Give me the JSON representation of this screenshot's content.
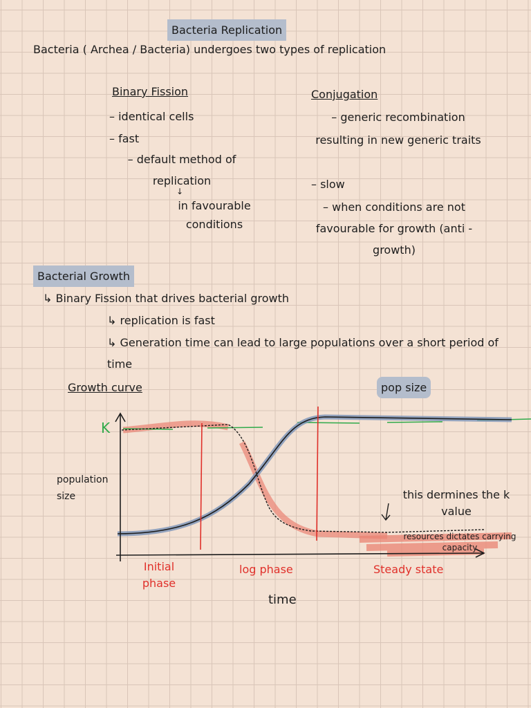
{
  "title": "Bacteria Replication",
  "intro": "Bacteria ( Archea / Bacteria) undergoes two types of replication",
  "columns": [
    {
      "heading": "Binary Fission",
      "items": [
        "identical cells",
        "fast",
        "default method of replication"
      ],
      "note": "in favourable conditions"
    },
    {
      "heading": "Conjugation",
      "items": [
        "generic recombination resulting in new generic traits",
        "slow",
        "when conditions are not favourable for growth (anti - growth)"
      ]
    }
  ],
  "growth": {
    "heading": "Bacterial Growth",
    "lines": [
      "Binary Fission that drives bacterial growth",
      "replication is fast",
      "Generation time can lead to large populations over a short period of time"
    ]
  },
  "graph": {
    "heading": "Growth curve",
    "highlight": "pop size",
    "k_label": "K",
    "y_label": "population size",
    "x_label": "time",
    "phases": [
      "Initial phase",
      "log phase",
      "Steady state"
    ],
    "annotations": [
      "this dermines the k value",
      "resources dictates carrying capacity"
    ]
  }
}
